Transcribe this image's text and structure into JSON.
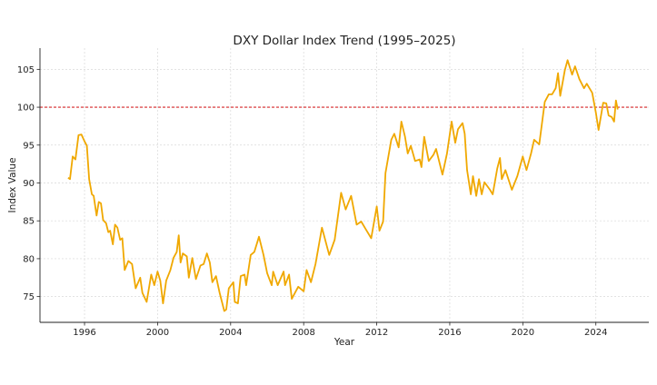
{
  "chart_data": {
    "type": "line",
    "title": "DXY Dollar Index Trend (1995–2025)",
    "xlabel": "Year",
    "ylabel": "Index Value",
    "xlim": [
      1993.56,
      2026.9
    ],
    "ylim": [
      71.6,
      107.8
    ],
    "xticks": [
      1996,
      2000,
      2004,
      2008,
      2012,
      2016,
      2020,
      2024
    ],
    "yticks": [
      75,
      80,
      85,
      90,
      95,
      100,
      105
    ],
    "grid": true,
    "line_color": "#f0a800",
    "reference_line": {
      "y": 100,
      "color": "#d62728",
      "style": "dashed"
    },
    "series": [
      {
        "name": "DXY",
        "x": [
          1995.1,
          1995.2,
          1995.35,
          1995.5,
          1995.67,
          1995.83,
          1996.0,
          1996.13,
          1996.25,
          1996.4,
          1996.5,
          1996.66,
          1996.78,
          1996.9,
          1997.02,
          1997.18,
          1997.3,
          1997.4,
          1997.55,
          1997.67,
          1997.8,
          1997.95,
          1998.07,
          1998.2,
          1998.4,
          1998.6,
          1998.8,
          1999.05,
          1999.17,
          1999.4,
          1999.65,
          1999.82,
          2000.0,
          2000.15,
          2000.3,
          2000.47,
          2000.7,
          2000.87,
          2001.05,
          2001.16,
          2001.26,
          2001.38,
          2001.6,
          2001.71,
          2001.9,
          2002.1,
          2002.35,
          2002.52,
          2002.7,
          2002.86,
          2003.0,
          2003.2,
          2003.4,
          2003.65,
          2003.76,
          2003.9,
          2004.15,
          2004.23,
          2004.4,
          2004.55,
          2004.76,
          2004.85,
          2005.1,
          2005.3,
          2005.55,
          2005.8,
          2006.0,
          2006.25,
          2006.33,
          2006.58,
          2006.9,
          2006.98,
          2007.2,
          2007.35,
          2007.7,
          2008.0,
          2008.16,
          2008.4,
          2008.65,
          2009.0,
          2009.4,
          2009.7,
          2010.05,
          2010.3,
          2010.6,
          2010.9,
          2011.15,
          2011.4,
          2011.7,
          2012.0,
          2012.15,
          2012.35,
          2012.48,
          2012.8,
          2012.96,
          2013.2,
          2013.35,
          2013.55,
          2013.7,
          2013.87,
          2014.1,
          2014.35,
          2014.45,
          2014.6,
          2014.85,
          2015.1,
          2015.25,
          2015.6,
          2015.85,
          2016.1,
          2016.3,
          2016.45,
          2016.7,
          2016.82,
          2016.95,
          2017.15,
          2017.27,
          2017.45,
          2017.6,
          2017.75,
          2017.9,
          2018.2,
          2018.35,
          2018.6,
          2018.75,
          2018.85,
          2019.05,
          2019.4,
          2019.7,
          2020.0,
          2020.2,
          2020.45,
          2020.62,
          2020.9,
          2021.2,
          2021.42,
          2021.6,
          2021.8,
          2021.93,
          2022.05,
          2022.3,
          2022.45,
          2022.7,
          2022.86,
          2023.1,
          2023.35,
          2023.5,
          2023.8,
          2024.0,
          2024.15,
          2024.4,
          2024.57,
          2024.7,
          2024.87,
          2025.0,
          2025.1,
          2025.2
        ],
        "y": [
          90.7,
          90.5,
          93.5,
          93.1,
          96.3,
          96.4,
          95.5,
          94.9,
          90.5,
          88.5,
          88.3,
          85.7,
          87.5,
          87.3,
          85.1,
          84.7,
          83.5,
          83.7,
          81.9,
          84.5,
          84.1,
          82.5,
          82.7,
          78.5,
          79.7,
          79.3,
          76.1,
          77.5,
          75.5,
          74.3,
          77.9,
          76.5,
          78.3,
          77.1,
          74.1,
          77.1,
          78.5,
          80.1,
          80.9,
          83.1,
          79.5,
          80.7,
          80.3,
          77.5,
          80.1,
          77.3,
          79.1,
          79.3,
          80.7,
          79.5,
          76.9,
          77.7,
          75.5,
          73.1,
          73.3,
          76.1,
          76.9,
          74.3,
          74.1,
          77.7,
          77.9,
          76.5,
          80.5,
          80.9,
          82.9,
          80.5,
          78.1,
          76.5,
          78.3,
          76.5,
          78.3,
          76.5,
          77.9,
          74.7,
          76.3,
          75.7,
          78.5,
          76.9,
          79.3,
          84.1,
          80.5,
          82.5,
          88.7,
          86.5,
          88.3,
          84.5,
          84.9,
          83.9,
          82.7,
          86.9,
          83.7,
          84.9,
          91.3,
          95.7,
          96.5,
          94.7,
          98.1,
          96.1,
          93.9,
          94.9,
          92.9,
          93.1,
          92.1,
          96.1,
          92.9,
          93.7,
          94.5,
          91.1,
          93.9,
          98.1,
          95.3,
          97.1,
          97.9,
          96.5,
          91.7,
          88.5,
          90.9,
          88.3,
          90.5,
          88.5,
          90.1,
          89.1,
          88.5,
          91.9,
          93.3,
          90.5,
          91.7,
          89.1,
          90.9,
          93.5,
          91.7,
          93.9,
          95.7,
          95.1,
          100.7,
          101.7,
          101.7,
          102.5,
          104.5,
          101.5,
          104.9,
          106.2,
          104.3,
          105.4,
          103.7,
          102.5,
          103.1,
          101.9,
          99.3,
          97.0,
          100.6,
          100.5,
          98.9,
          98.7,
          98.1,
          100.9,
          99.7
        ]
      }
    ]
  }
}
